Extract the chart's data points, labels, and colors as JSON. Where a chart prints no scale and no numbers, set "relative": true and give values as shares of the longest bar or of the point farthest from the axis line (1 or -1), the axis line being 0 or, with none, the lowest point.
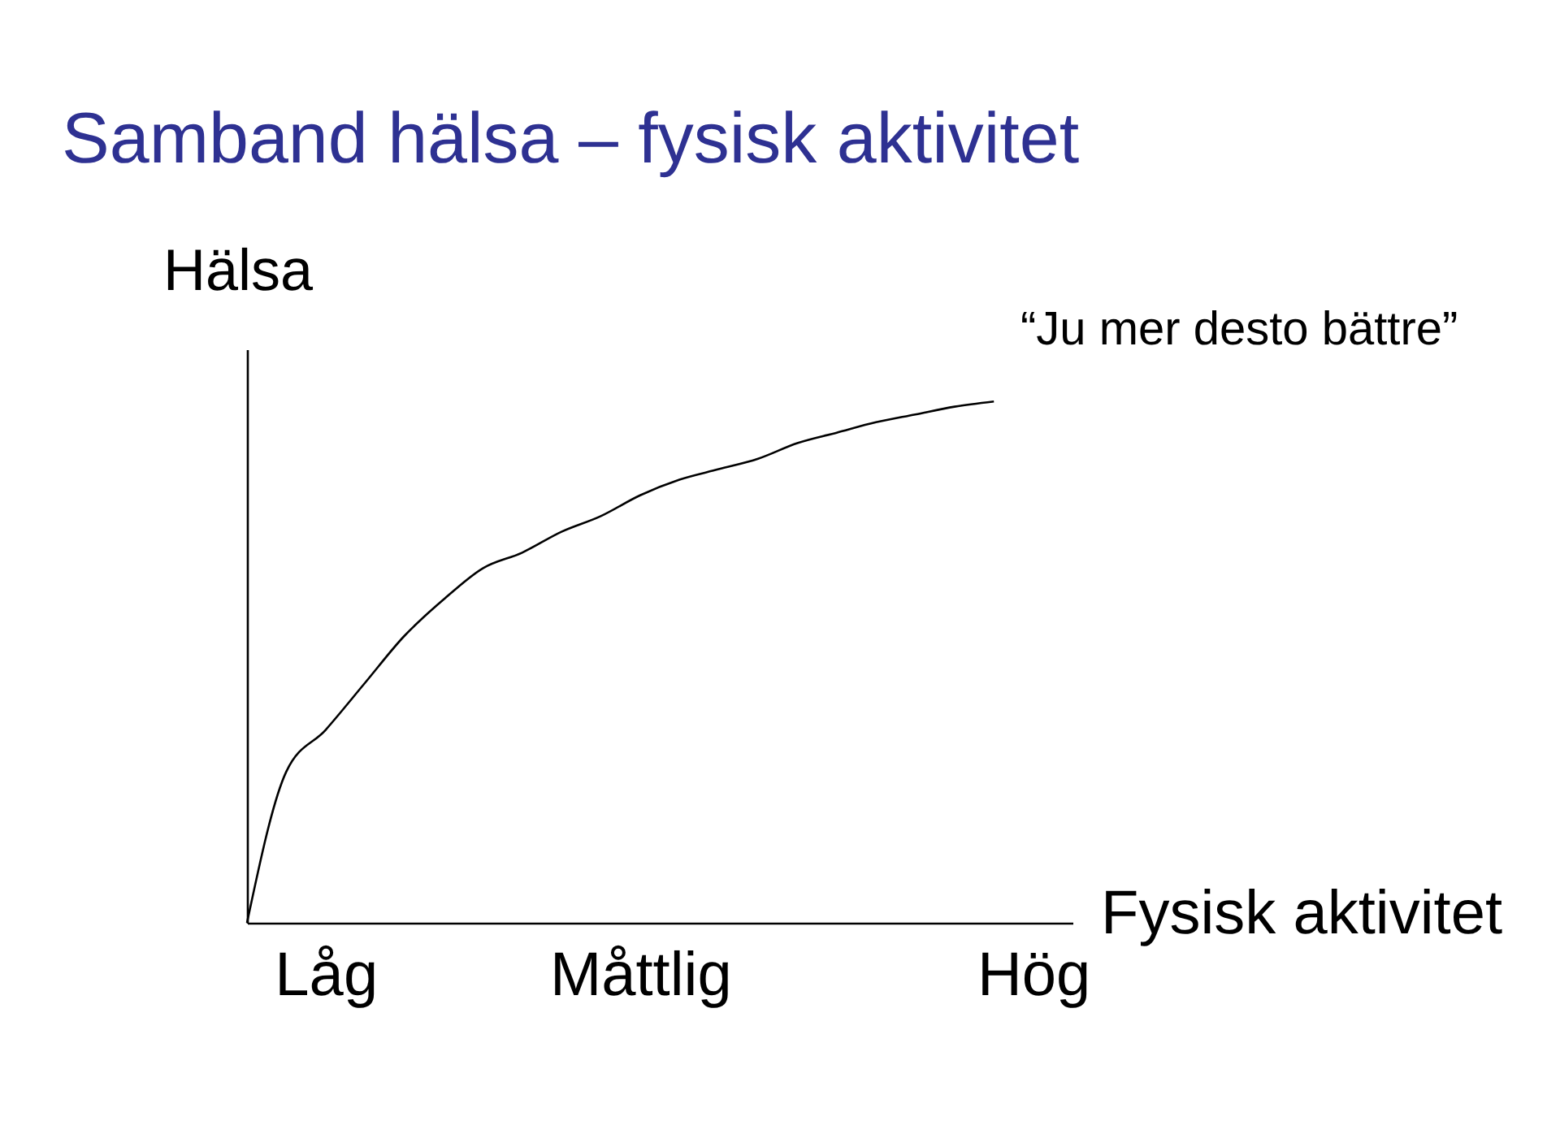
{
  "chart_data": {
    "type": "line",
    "relative": true,
    "title": "Samband hälsa – fysisk aktivitet",
    "xlabel": "Fysisk aktivitet",
    "ylabel": "Hälsa",
    "annotations": [
      "“Ju mer desto bättre”"
    ],
    "categories": [
      null,
      null,
      "Låg",
      null,
      null,
      null,
      null,
      null,
      null,
      null,
      "Måttlig",
      null,
      null,
      null,
      null,
      null,
      null,
      null,
      null,
      null,
      "Hög",
      null
    ],
    "values": [
      0,
      0.29,
      0.37,
      0.46,
      0.55,
      0.62,
      0.68,
      0.71,
      0.75,
      0.78,
      0.82,
      0.85,
      0.87,
      0.89,
      0.92,
      0.94,
      0.96,
      0.975,
      0.99,
      1,
      null,
      null
    ],
    "color": "#000000"
  }
}
